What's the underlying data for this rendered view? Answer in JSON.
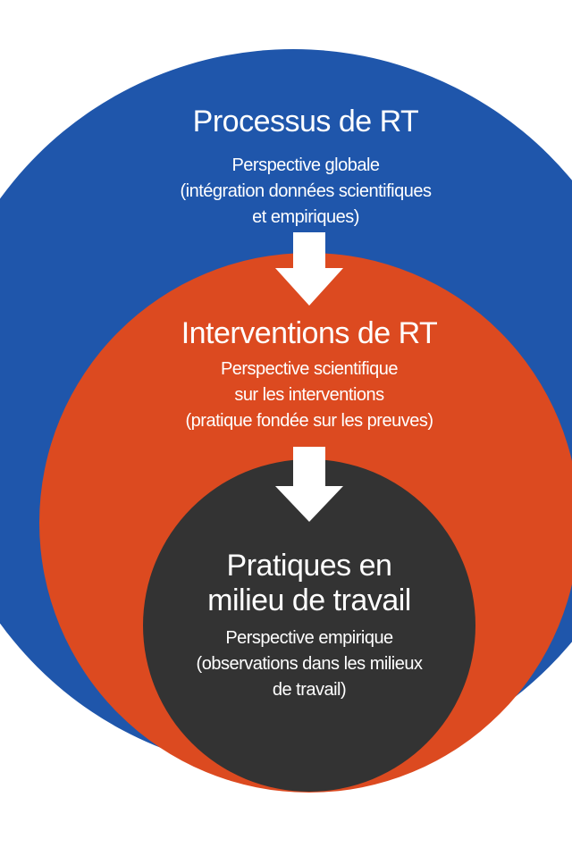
{
  "colors": {
    "outer_circle": "#1f56ab",
    "middle_circle": "#dc4a20",
    "inner_circle": "#333333",
    "text": "#ffffff",
    "arrow": "#ffffff"
  },
  "diagram": {
    "outer": {
      "title": "Processus de RT",
      "subtitle_lines": [
        "Perspective globale",
        "(intégration données scientifiques",
        "et  empiriques)"
      ]
    },
    "middle": {
      "title": "Interventions de RT",
      "subtitle_lines": [
        "Perspective scientifique",
        "sur les interventions",
        "(pratique fondée sur les preuves)"
      ]
    },
    "inner": {
      "title_lines": [
        "Pratiques en",
        "milieu de travail"
      ],
      "subtitle_lines": [
        "Perspective empirique",
        "(observations dans les milieux",
        "de travail)"
      ]
    },
    "arrows": [
      "down-arrow",
      "down-arrow"
    ]
  }
}
